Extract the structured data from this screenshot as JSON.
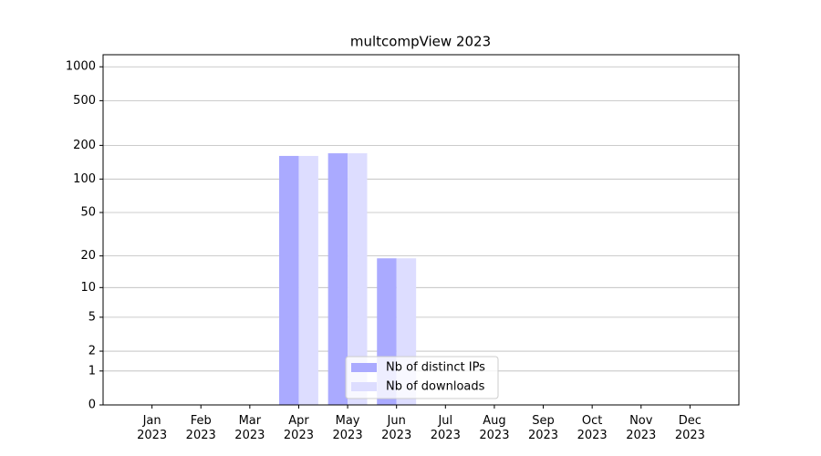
{
  "chart_data": {
    "type": "bar",
    "title": "multcompView 2023",
    "categories": [
      "Jan 2023",
      "Feb 2023",
      "Mar 2023",
      "Apr 2023",
      "May 2023",
      "Jun 2023",
      "Jul 2023",
      "Aug 2023",
      "Sep 2023",
      "Oct 2023",
      "Nov 2023",
      "Dec 2023"
    ],
    "series": [
      {
        "name": "Nb of distinct IPs",
        "color": "#aaaaff",
        "values": [
          0,
          0,
          0,
          161,
          170,
          19,
          0,
          0,
          0,
          0,
          0,
          0
        ]
      },
      {
        "name": "Nb of downloads",
        "color": "#ddddff",
        "values": [
          0,
          0,
          0,
          161,
          170,
          19,
          0,
          0,
          0,
          0,
          0,
          0
        ]
      }
    ],
    "yscale": "symlog",
    "ylim": [
      0,
      1280
    ],
    "yticks": [
      0,
      1,
      2,
      5,
      10,
      20,
      50,
      100,
      200,
      500,
      1000
    ],
    "grid": true,
    "legend": "lower center"
  }
}
